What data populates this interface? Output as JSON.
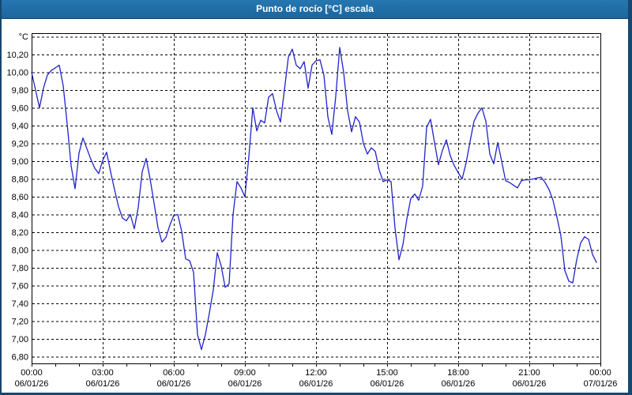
{
  "window": {
    "title": "Punto de rocío [°C] escala"
  },
  "colors": {
    "titlebar": "#1D6DA6",
    "titlebar_text": "#FFFFFF",
    "window_border": "#16476F",
    "plot_background": "#FFFFFF",
    "frame": "#000000",
    "grid": "#000000",
    "text": "#000000",
    "line": "#2222CC"
  },
  "chart_data": {
    "type": "line",
    "title": "Punto de rocío [°C] escala",
    "unit_label": "°C",
    "grid": "dashed",
    "legend": "none",
    "y_axis": {
      "top_gridline_value": 10.4,
      "top_label_value": 10.2,
      "bottom_label_value": 6.8,
      "step": 0.2,
      "decimal_separator": ",",
      "labels": [
        "10,20",
        "10,00",
        "9,80",
        "9,60",
        "9,40",
        "9,20",
        "9,00",
        "8,80",
        "8,60",
        "8,40",
        "8,20",
        "8,00",
        "7,80",
        "7,60",
        "7,40",
        "7,20",
        "7,00",
        "6,80"
      ]
    },
    "x_axis": {
      "span_hours": 24,
      "major_step_hours": 3,
      "minor_tick_hours": 1,
      "ticks": [
        {
          "time": "00:00",
          "date": "06/01/26"
        },
        {
          "time": "03:00",
          "date": "06/01/26"
        },
        {
          "time": "06:00",
          "date": "06/01/26"
        },
        {
          "time": "09:00",
          "date": "06/01/26"
        },
        {
          "time": "12:00",
          "date": "06/01/26"
        },
        {
          "time": "15:00",
          "date": "06/01/26"
        },
        {
          "time": "18:00",
          "date": "06/01/26"
        },
        {
          "time": "21:00",
          "date": "06/01/26"
        },
        {
          "time": "00:00",
          "date": "07/01/26"
        }
      ]
    },
    "series": [
      {
        "name": "Punto de rocío",
        "start_time": "00:00",
        "step_minutes": 10,
        "values": [
          10.0,
          9.8,
          9.6,
          9.82,
          9.97,
          10.02,
          10.05,
          10.08,
          9.85,
          9.42,
          8.95,
          8.69,
          9.09,
          9.26,
          9.14,
          9.02,
          8.92,
          8.86,
          9.01,
          9.1,
          8.88,
          8.68,
          8.49,
          8.36,
          8.33,
          8.4,
          8.24,
          8.48,
          8.88,
          9.03,
          8.8,
          8.53,
          8.25,
          8.09,
          8.14,
          8.28,
          8.39,
          8.4,
          8.21,
          7.9,
          7.88,
          7.75,
          7.05,
          6.88,
          7.05,
          7.29,
          7.55,
          7.97,
          7.82,
          7.58,
          7.62,
          8.4,
          8.77,
          8.7,
          8.6,
          9.05,
          9.6,
          9.34,
          9.46,
          9.43,
          9.72,
          9.76,
          9.57,
          9.44,
          9.8,
          10.17,
          10.26,
          10.08,
          10.04,
          10.12,
          9.82,
          10.08,
          10.13,
          10.14,
          9.97,
          9.5,
          9.3,
          9.73,
          10.28,
          10.0,
          9.57,
          9.33,
          9.5,
          9.44,
          9.2,
          9.08,
          9.15,
          9.11,
          8.9,
          8.77,
          8.79,
          8.77,
          8.25,
          7.89,
          8.06,
          8.35,
          8.58,
          8.63,
          8.56,
          8.72,
          9.38,
          9.47,
          9.21,
          8.96,
          9.12,
          9.24,
          9.06,
          8.95,
          8.87,
          8.8,
          8.98,
          9.22,
          9.45,
          9.54,
          9.6,
          9.45,
          9.08,
          8.97,
          9.21,
          9.0,
          8.78,
          8.76,
          8.73,
          8.7,
          8.78,
          8.79,
          8.79,
          8.8,
          8.81,
          8.82,
          8.76,
          8.68,
          8.56,
          8.37,
          8.16,
          7.77,
          7.65,
          7.63,
          7.89,
          8.08,
          8.15,
          8.12,
          7.95,
          7.86
        ]
      }
    ]
  }
}
